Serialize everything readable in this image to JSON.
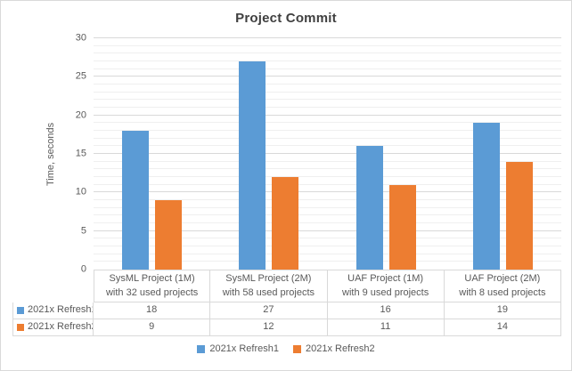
{
  "title": "Project Commit",
  "colors": {
    "series1": "#5B9BD5",
    "series2": "#ED7D31",
    "major_gridline": "#D9D9D9",
    "minor_gridline": "#EFEFEF",
    "table_border": "#D9D9D9",
    "axis_text": "#595959",
    "title_text": "#404040",
    "chart_border": "#D9D9D9",
    "background": "#FFFFFF"
  },
  "chart_data": {
    "type": "bar",
    "title": "Project Commit",
    "xlabel": "",
    "ylabel": "Time, seconds",
    "ylim": [
      0,
      30
    ],
    "y_major_unit": 5,
    "y_minor_unit": 1,
    "yticks": [
      "0",
      "5",
      "10",
      "15",
      "20",
      "25",
      "30"
    ],
    "grid": true,
    "legend_position": "bottom",
    "data_table_shown": true,
    "categories": [
      {
        "line1": "SysML Project (1M)",
        "line2": "with 32 used projects"
      },
      {
        "line1": "SysML Project (2M)",
        "line2": "with 58 used projects"
      },
      {
        "line1": "UAF Project (1M)",
        "line2": "with 9 used projects"
      },
      {
        "line1": "UAF Project (2M)",
        "line2": "with 8 used projects"
      }
    ],
    "series": [
      {
        "name": "2021x Refresh1",
        "color": "#5B9BD5",
        "values": [
          18,
          27,
          16,
          19
        ]
      },
      {
        "name": "2021x Refresh2",
        "color": "#ED7D31",
        "values": [
          9,
          12,
          11,
          14
        ]
      }
    ]
  }
}
